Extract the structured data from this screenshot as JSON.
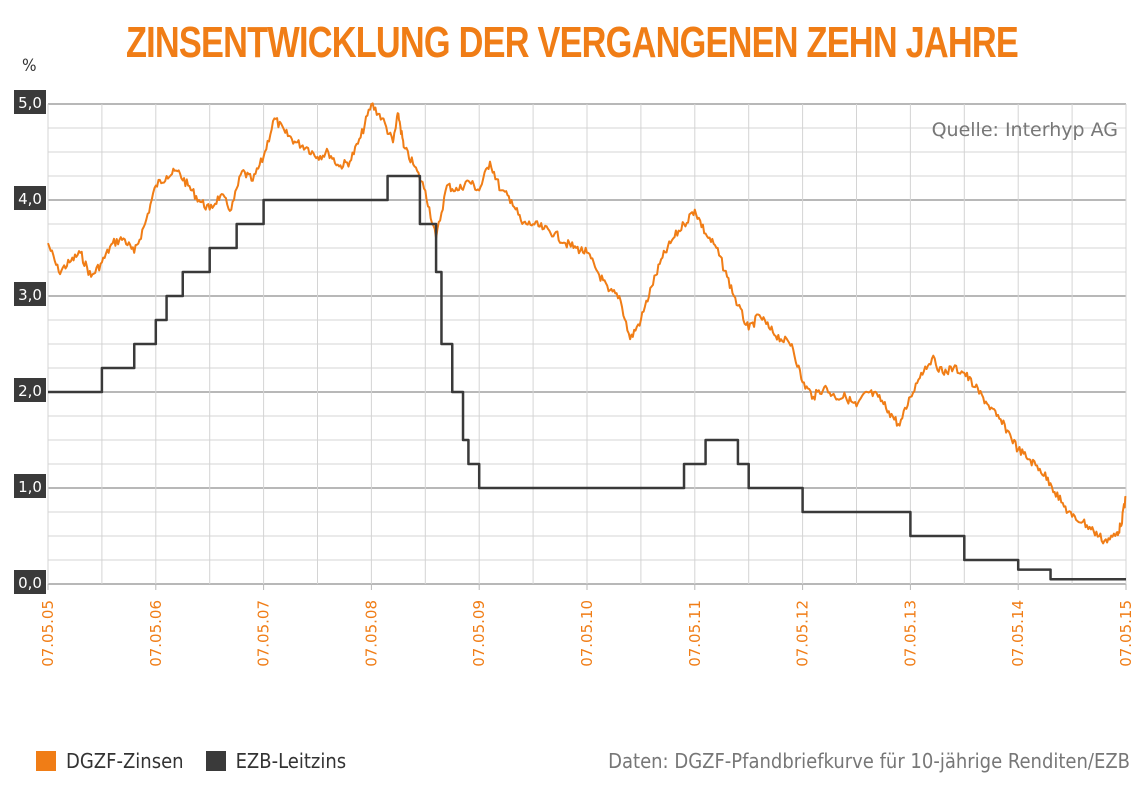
{
  "title": "ZINSENTWICKLUNG DER VERGANGENEN ZEHN JAHRE",
  "unit": "%",
  "source": "Quelle: Interhyp AG",
  "footnote": "Daten: DGZF-Pfandbriefkurve für 10-jährige Renditen/EZB",
  "colors": {
    "dgzf": "#f07d16",
    "ezb": "#3a3a3a",
    "grid": "#d4d4d4",
    "gridMajor": "#b8b8b8"
  },
  "legend": [
    {
      "label": "DGZF-Zinsen",
      "color": "#f07d16"
    },
    {
      "label": "EZB-Leitzins",
      "color": "#3a3a3a"
    }
  ],
  "chart_data": {
    "type": "line",
    "title": "ZINSENTWICKLUNG DER VERGANGENEN ZEHN JAHRE",
    "ylabel": "%",
    "ylim": [
      0,
      5.0
    ],
    "yticks": [
      "5,0",
      "4,0",
      "3,0",
      "2,0",
      "1,0",
      "0,0"
    ],
    "ytick_values": [
      5,
      4,
      3,
      2,
      1,
      0
    ],
    "xlim": [
      2005.35,
      2015.35
    ],
    "xticks": [
      "07.05.05",
      "07.05.06",
      "07.05.07",
      "07.05.08",
      "07.05.09",
      "07.05.10",
      "07.05.11",
      "07.05.12",
      "07.05.13",
      "07.05.14",
      "07.05.15"
    ],
    "xtick_values": [
      2005.35,
      2006.35,
      2007.35,
      2008.35,
      2009.35,
      2010.35,
      2011.35,
      2012.35,
      2013.35,
      2014.35,
      2015.35
    ],
    "grid": true,
    "series": [
      {
        "name": "DGZF-Zinsen",
        "style": "line",
        "x": [
          2005.35,
          2005.45,
          2005.55,
          2005.65,
          2005.75,
          2005.85,
          2005.95,
          2006.05,
          2006.15,
          2006.25,
          2006.35,
          2006.45,
          2006.55,
          2006.65,
          2006.75,
          2006.85,
          2006.95,
          2007.05,
          2007.15,
          2007.25,
          2007.35,
          2007.45,
          2007.55,
          2007.65,
          2007.75,
          2007.85,
          2007.95,
          2008.05,
          2008.15,
          2008.25,
          2008.35,
          2008.45,
          2008.55,
          2008.6,
          2008.65,
          2008.75,
          2008.85,
          2008.95,
          2009.05,
          2009.15,
          2009.25,
          2009.35,
          2009.45,
          2009.55,
          2009.65,
          2009.75,
          2009.85,
          2009.95,
          2010.05,
          2010.15,
          2010.25,
          2010.35,
          2010.45,
          2010.55,
          2010.65,
          2010.75,
          2010.85,
          2010.95,
          2011.05,
          2011.15,
          2011.25,
          2011.35,
          2011.45,
          2011.55,
          2011.65,
          2011.75,
          2011.85,
          2011.95,
          2012.05,
          2012.15,
          2012.25,
          2012.35,
          2012.45,
          2012.55,
          2012.65,
          2012.75,
          2012.85,
          2012.95,
          2013.05,
          2013.15,
          2013.25,
          2013.35,
          2013.45,
          2013.55,
          2013.65,
          2013.75,
          2013.85,
          2013.95,
          2014.05,
          2014.15,
          2014.25,
          2014.35,
          2014.45,
          2014.55,
          2014.65,
          2014.75,
          2014.85,
          2014.95,
          2015.05,
          2015.15,
          2015.25,
          2015.3,
          2015.35
        ],
        "y": [
          3.55,
          3.25,
          3.35,
          3.45,
          3.2,
          3.35,
          3.55,
          3.6,
          3.45,
          3.75,
          4.15,
          4.25,
          4.3,
          4.15,
          4.0,
          3.9,
          4.05,
          3.9,
          4.3,
          4.2,
          4.45,
          4.85,
          4.7,
          4.6,
          4.55,
          4.45,
          4.5,
          4.35,
          4.4,
          4.65,
          5.0,
          4.85,
          4.6,
          4.9,
          4.55,
          4.35,
          4.1,
          3.6,
          4.15,
          4.1,
          4.2,
          4.1,
          4.4,
          4.1,
          4.0,
          3.75,
          3.75,
          3.7,
          3.65,
          3.55,
          3.5,
          3.45,
          3.25,
          3.05,
          3.0,
          2.55,
          2.75,
          3.1,
          3.4,
          3.6,
          3.75,
          3.9,
          3.65,
          3.5,
          3.2,
          2.9,
          2.65,
          2.8,
          2.65,
          2.55,
          2.5,
          2.1,
          1.95,
          2.05,
          1.95,
          1.95,
          1.85,
          2.0,
          1.95,
          1.8,
          1.65,
          1.95,
          2.2,
          2.35,
          2.2,
          2.25,
          2.2,
          2.05,
          1.9,
          1.75,
          1.6,
          1.4,
          1.3,
          1.2,
          1.05,
          0.85,
          0.7,
          0.65,
          0.55,
          0.45,
          0.5,
          0.6,
          0.9
        ]
      },
      {
        "name": "EZB-Leitzins",
        "style": "step",
        "x": [
          2005.35,
          2005.85,
          2006.15,
          2006.35,
          2006.45,
          2006.6,
          2006.85,
          2007.1,
          2007.35,
          2008.5,
          2008.8,
          2008.95,
          2009.0,
          2009.1,
          2009.2,
          2009.25,
          2009.35,
          2011.25,
          2011.45,
          2011.75,
          2011.85,
          2012.35,
          2013.35,
          2013.85,
          2014.35,
          2014.65,
          2015.35
        ],
        "y": [
          2.0,
          2.25,
          2.5,
          2.75,
          3.0,
          3.25,
          3.5,
          3.75,
          4.0,
          4.25,
          3.75,
          3.25,
          2.5,
          2.0,
          1.5,
          1.25,
          1.0,
          1.25,
          1.5,
          1.25,
          1.0,
          0.75,
          0.5,
          0.25,
          0.15,
          0.05,
          0.05
        ]
      }
    ]
  }
}
